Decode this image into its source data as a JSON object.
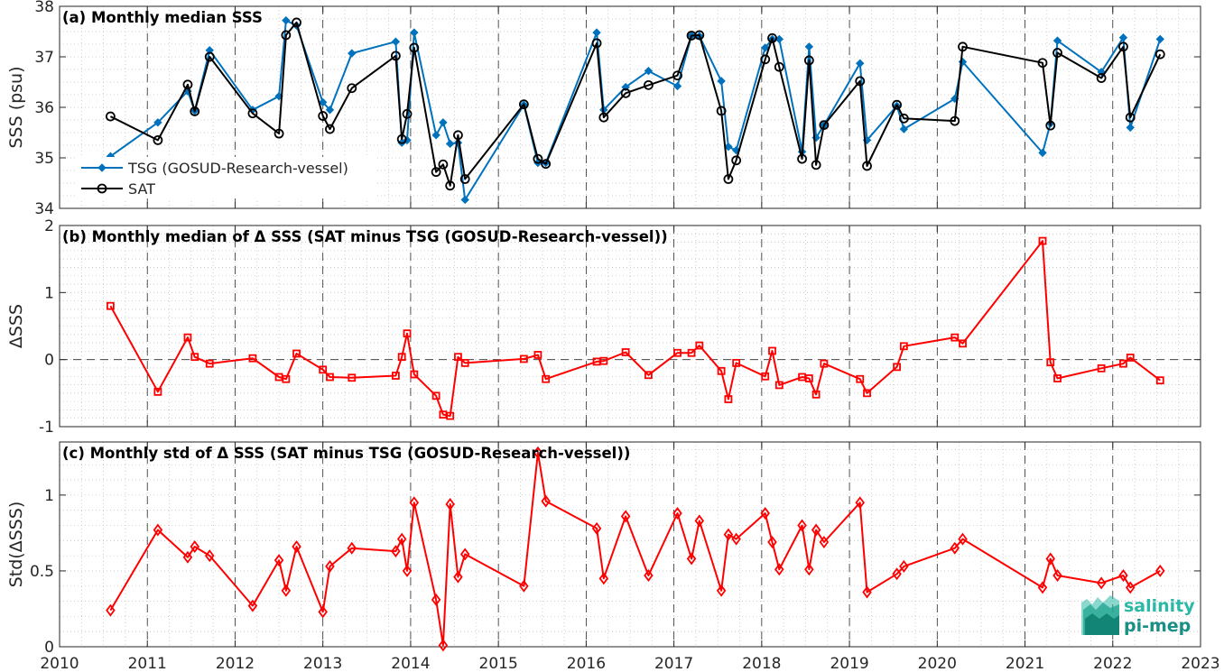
{
  "chart_data": [
    {
      "type": "line",
      "title": "(a) Monthly median SSS",
      "ylabel": "SSS (psu)",
      "ylim": [
        34,
        38
      ],
      "yticks": [
        34,
        35,
        36,
        37,
        38
      ],
      "xlim": [
        2010,
        2023
      ],
      "xticks": [
        2010,
        2011,
        2012,
        2013,
        2014,
        2015,
        2016,
        2017,
        2018,
        2019,
        2020,
        2021,
        2022,
        2023
      ],
      "grid": true,
      "legend_position": "lower-left",
      "series": [
        {
          "name": "TSG (GOSUD-Research-vessel)",
          "color": "#0072BD",
          "marker": "filled-diamond",
          "x": [
            2010.58,
            2011.12,
            2011.46,
            2011.54,
            2011.71,
            2012.2,
            2012.5,
            2012.58,
            2012.7,
            2013.0,
            2013.08,
            2013.33,
            2013.83,
            2013.9,
            2013.96,
            2014.04,
            2014.29,
            2014.37,
            2014.45,
            2014.54,
            2014.62,
            2015.29,
            2015.45,
            2015.54,
            2016.12,
            2016.2,
            2016.45,
            2016.71,
            2017.04,
            2017.2,
            2017.29,
            2017.54,
            2017.62,
            2017.71,
            2018.04,
            2018.12,
            2018.2,
            2018.46,
            2018.54,
            2018.62,
            2018.71,
            2019.12,
            2019.2,
            2019.54,
            2019.62,
            2020.2,
            2020.29,
            2021.2,
            2021.29,
            2021.37,
            2021.87,
            2022.12,
            2022.2,
            2022.54
          ],
          "values": [
            35.03,
            35.7,
            36.32,
            35.93,
            37.13,
            35.95,
            36.22,
            37.72,
            37.62,
            36.1,
            35.95,
            37.07,
            37.3,
            35.3,
            35.35,
            37.48,
            35.45,
            35.7,
            35.28,
            35.3,
            34.17,
            36.05,
            34.9,
            34.9,
            37.48,
            35.95,
            36.4,
            36.72,
            36.42,
            37.42,
            37.41,
            36.52,
            35.22,
            35.15,
            37.18,
            37.35,
            37.35,
            35.12,
            37.2,
            35.4,
            35.65,
            36.87,
            35.35,
            36.03,
            35.57,
            36.17,
            36.9,
            35.1,
            35.68,
            37.32,
            36.7,
            37.38,
            35.6,
            37.35
          ]
        },
        {
          "name": "SAT",
          "color": "#000000",
          "marker": "open-circle",
          "x": [
            2010.58,
            2011.12,
            2011.46,
            2011.54,
            2011.71,
            2012.2,
            2012.5,
            2012.58,
            2012.7,
            2013.0,
            2013.08,
            2013.33,
            2013.83,
            2013.9,
            2013.96,
            2014.04,
            2014.29,
            2014.37,
            2014.45,
            2014.54,
            2014.62,
            2015.29,
            2015.45,
            2015.54,
            2016.12,
            2016.2,
            2016.45,
            2016.71,
            2017.04,
            2017.2,
            2017.29,
            2017.54,
            2017.62,
            2017.71,
            2018.04,
            2018.12,
            2018.2,
            2018.46,
            2018.54,
            2018.62,
            2018.71,
            2019.12,
            2019.2,
            2019.54,
            2019.62,
            2020.2,
            2020.29,
            2021.2,
            2021.29,
            2021.37,
            2021.87,
            2022.12,
            2022.2,
            2022.54
          ],
          "values": [
            35.82,
            35.35,
            36.45,
            35.92,
            37.0,
            35.88,
            35.48,
            37.43,
            37.68,
            35.83,
            35.57,
            36.38,
            37.02,
            35.37,
            35.87,
            37.18,
            34.72,
            34.87,
            34.45,
            35.45,
            34.58,
            36.06,
            34.98,
            34.88,
            37.27,
            35.8,
            36.28,
            36.44,
            36.63,
            37.42,
            37.43,
            35.93,
            34.58,
            34.95,
            36.95,
            37.37,
            36.8,
            34.98,
            36.93,
            34.86,
            35.65,
            36.52,
            34.84,
            36.05,
            35.78,
            35.73,
            37.2,
            36.88,
            35.64,
            37.08,
            36.58,
            37.2,
            35.8,
            37.05
          ]
        }
      ]
    },
    {
      "type": "line",
      "title": "(b) Monthly median of Δ SSS (SAT minus TSG (GOSUD-Research-vessel))",
      "ylabel": "ΔSSS",
      "ylim": [
        -1,
        2
      ],
      "yticks": [
        -1,
        0,
        1,
        2
      ],
      "xlim": [
        2010,
        2023
      ],
      "grid": true,
      "reference_line": 0,
      "series": [
        {
          "name": "",
          "color": "#FF0000",
          "marker": "open-square",
          "x": [
            2010.58,
            2011.12,
            2011.46,
            2011.54,
            2011.71,
            2012.2,
            2012.5,
            2012.58,
            2012.7,
            2013.0,
            2013.08,
            2013.33,
            2013.83,
            2013.9,
            2013.96,
            2014.04,
            2014.29,
            2014.37,
            2014.45,
            2014.54,
            2014.62,
            2015.29,
            2015.45,
            2015.54,
            2016.12,
            2016.2,
            2016.45,
            2016.71,
            2017.04,
            2017.2,
            2017.29,
            2017.54,
            2017.62,
            2017.71,
            2018.04,
            2018.12,
            2018.2,
            2018.46,
            2018.54,
            2018.62,
            2018.71,
            2019.12,
            2019.2,
            2019.54,
            2019.62,
            2020.2,
            2020.29,
            2021.2,
            2021.29,
            2021.37,
            2021.87,
            2022.12,
            2022.2,
            2022.54
          ],
          "values": [
            0.8,
            -0.48,
            0.33,
            0.04,
            -0.06,
            0.02,
            -0.26,
            -0.29,
            0.09,
            -0.15,
            -0.26,
            -0.27,
            -0.24,
            0.04,
            0.39,
            -0.22,
            -0.54,
            -0.82,
            -0.84,
            0.04,
            -0.05,
            0.01,
            0.07,
            -0.29,
            -0.03,
            -0.02,
            0.11,
            -0.23,
            0.1,
            0.1,
            0.21,
            -0.17,
            -0.59,
            -0.05,
            -0.25,
            0.13,
            -0.38,
            -0.26,
            -0.28,
            -0.52,
            -0.06,
            -0.29,
            -0.5,
            -0.11,
            0.2,
            0.33,
            0.24,
            1.77,
            -0.04,
            -0.28,
            -0.13,
            -0.06,
            0.03,
            -0.31
          ]
        }
      ]
    },
    {
      "type": "line",
      "title": "(c) Monthly std of Δ SSS (SAT minus TSG (GOSUD-Research-vessel))",
      "ylabel": "Std(ΔSSS)",
      "ylim": [
        0,
        1.35
      ],
      "yticks": [
        0,
        0.5,
        1
      ],
      "xlim": [
        2010,
        2023
      ],
      "xticks": [
        2010,
        2011,
        2012,
        2013,
        2014,
        2015,
        2016,
        2017,
        2018,
        2019,
        2020,
        2021,
        2022,
        2023
      ],
      "grid": true,
      "series": [
        {
          "name": "",
          "color": "#FF0000",
          "marker": "open-diamond",
          "x": [
            2010.58,
            2011.12,
            2011.46,
            2011.54,
            2011.71,
            2012.2,
            2012.5,
            2012.58,
            2012.7,
            2013.0,
            2013.08,
            2013.33,
            2013.83,
            2013.9,
            2013.96,
            2014.04,
            2014.29,
            2014.37,
            2014.45,
            2014.54,
            2014.62,
            2015.29,
            2015.45,
            2015.54,
            2016.12,
            2016.2,
            2016.45,
            2016.71,
            2017.04,
            2017.2,
            2017.29,
            2017.54,
            2017.62,
            2017.71,
            2018.04,
            2018.12,
            2018.2,
            2018.46,
            2018.54,
            2018.62,
            2018.71,
            2019.12,
            2019.2,
            2019.54,
            2019.62,
            2020.2,
            2020.29,
            2021.2,
            2021.29,
            2021.37,
            2021.87,
            2022.12,
            2022.2,
            2022.54
          ],
          "values": [
            0.24,
            0.77,
            0.59,
            0.66,
            0.6,
            0.27,
            0.57,
            0.37,
            0.66,
            0.23,
            0.53,
            0.65,
            0.63,
            0.71,
            0.5,
            0.95,
            0.31,
            0.01,
            0.94,
            0.46,
            0.61,
            0.4,
            1.28,
            0.96,
            0.78,
            0.45,
            0.86,
            0.47,
            0.88,
            0.58,
            0.83,
            0.37,
            0.74,
            0.71,
            0.88,
            0.69,
            0.51,
            0.8,
            0.51,
            0.77,
            0.69,
            0.95,
            0.36,
            0.48,
            0.53,
            0.65,
            0.71,
            0.39,
            0.58,
            0.47,
            0.42,
            0.47,
            0.39,
            0.5
          ]
        }
      ]
    }
  ],
  "logo": {
    "line1": "salinity",
    "line2": "pi-mep"
  }
}
